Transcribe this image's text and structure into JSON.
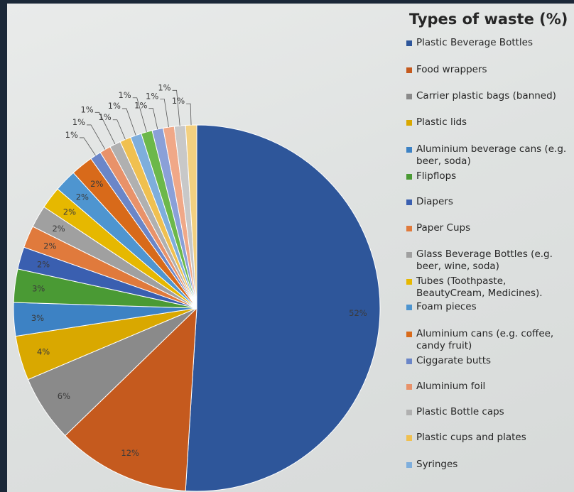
{
  "chart_data": {
    "type": "pie",
    "title": "Types of waste (%)",
    "legend_position": "right",
    "slices": [
      {
        "label": "Plastic Beverage Bottles",
        "value": 52,
        "value_label": "52%",
        "color": "#2e569a"
      },
      {
        "label": "Food wrappers",
        "value": 12,
        "value_label": "12%",
        "color": "#c55a1e"
      },
      {
        "label": "Carrier plastic bags (banned)",
        "value": 6,
        "value_label": "6%",
        "color": "#8a8a8a"
      },
      {
        "label": "Plastic lids",
        "value": 4,
        "value_label": "4%",
        "color": "#d9a800"
      },
      {
        "label": "Aluminium beverage cans (e.g. beer, soda)",
        "value": 3,
        "value_label": "3%",
        "color": "#3d82c4"
      },
      {
        "label": "Flipflops",
        "value": 3,
        "value_label": "3%",
        "color": "#4a9a34"
      },
      {
        "label": "Diapers",
        "value": 2,
        "value_label": "2%",
        "color": "#3a5fb0"
      },
      {
        "label": "Paper Cups",
        "value": 2,
        "value_label": "2%",
        "color": "#e07a3c"
      },
      {
        "label": "Glass Beverage Bottles (e.g. beer, wine, soda)",
        "value": 2,
        "value_label": "2%",
        "color": "#a0a0a0"
      },
      {
        "label": "Tubes (Toothpaste, BeautyCream, Medicines).",
        "value": 2,
        "value_label": "2%",
        "color": "#e6b800"
      },
      {
        "label": "Foam pieces",
        "value": 2,
        "value_label": "2%",
        "color": "#4e95d0"
      },
      {
        "label": "Aluminium cans (e.g. coffee, candy fruit)",
        "value": 2,
        "value_label": "2%",
        "color": "#d86a1a"
      },
      {
        "label": "Ciggarate butts",
        "value": 1,
        "value_label": "1%",
        "color": "#6b86c8"
      },
      {
        "label": "Aluminium foil",
        "value": 1,
        "value_label": "1%",
        "color": "#e8926a"
      },
      {
        "label": "Plastic Bottle caps",
        "value": 1,
        "value_label": "1%",
        "color": "#b0b0b0"
      },
      {
        "label": "Plastic cups and plates",
        "value": 1,
        "value_label": "1%",
        "color": "#f0c050"
      },
      {
        "label": "Syringes",
        "value": 1,
        "value_label": "1%",
        "color": "#7eaedc"
      },
      {
        "label": "",
        "value": 1,
        "value_label": "1%",
        "color": "#6cb84a"
      },
      {
        "label": "",
        "value": 1,
        "value_label": "1%",
        "color": "#8aa0d8"
      },
      {
        "label": "",
        "value": 1,
        "value_label": "1%",
        "color": "#f0a888"
      },
      {
        "label": "",
        "value": 1,
        "value_label": "1%",
        "color": "#c8c8c8"
      },
      {
        "label": "",
        "value": 1,
        "value_label": "1%",
        "color": "#f3d080"
      }
    ]
  }
}
